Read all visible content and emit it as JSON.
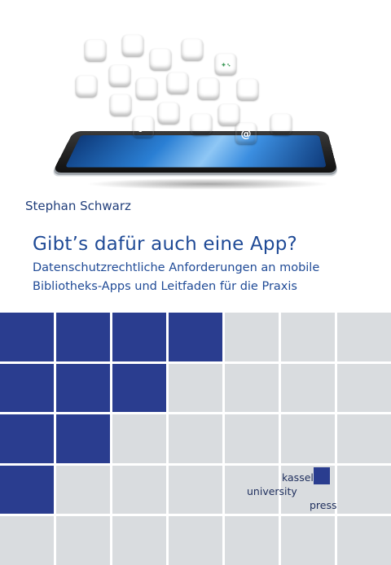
{
  "cover": {
    "author": "Stephan Schwarz",
    "title": "Gibt’s dafür auch eine App?",
    "subtitle_lines": [
      "Datenschutzrechtliche Anforderungen an mobile",
      "Bibliotheks-Apps und Leitfaden für die Praxis"
    ],
    "publisher_lines": [
      "kassel",
      "university",
      "press"
    ]
  },
  "illustration": {
    "icons": [
      {
        "name": "magnifier-minus-icon",
        "color": "#3f8f4a"
      },
      {
        "name": "speaker-icon",
        "color": "#7a3fa8"
      },
      {
        "name": "users-icon",
        "color": "#3f78b8"
      },
      {
        "name": "search-icon",
        "color": "#c83a3a"
      },
      {
        "name": "gamepad-icon",
        "color": "#3f9a5a"
      },
      {
        "name": "question-icon",
        "color": "#e08a1a"
      },
      {
        "name": "bar-chart-icon",
        "color": "#3a6fb0"
      },
      {
        "name": "phone-icon",
        "color": "#2f8fa0"
      },
      {
        "name": "previous-track-icon",
        "color": "#e07d10"
      },
      {
        "name": "star-icon",
        "color": "#9a3fa8"
      },
      {
        "name": "person-icon",
        "color": "#c83a3a"
      },
      {
        "name": "magnifier-plus-icon",
        "color": "#c8303a"
      },
      {
        "name": "rss-icon",
        "color": "#3f9a4a"
      },
      {
        "name": "music-note-icon",
        "color": "#e08a1a"
      },
      {
        "name": "volume-icon",
        "color": "#2f8f9a"
      },
      {
        "name": "next-track-icon",
        "color": "#3a6fb0"
      },
      {
        "name": "at-sign-icon",
        "color": "#3f9a5a"
      },
      {
        "name": "camera-icon",
        "color": "#3a7fb0"
      }
    ]
  },
  "colors": {
    "navy": "#2a3d8f",
    "light_gray": "#d9dcdf",
    "title_blue": "#1f4a96"
  },
  "grid": {
    "columns": 7,
    "rows": 5,
    "dark_cells_per_row": [
      4,
      3,
      2,
      1,
      0
    ]
  }
}
